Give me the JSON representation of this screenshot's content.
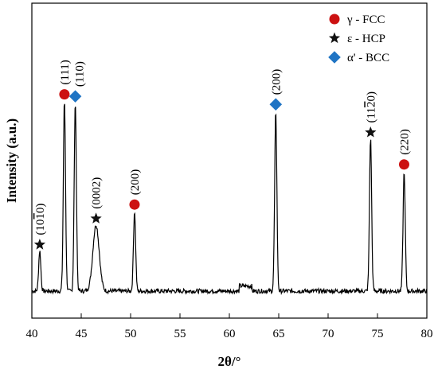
{
  "chart_data": {
    "type": "line",
    "title": "",
    "xlabel": "2θ/°",
    "ylabel": "Intensity (a.u.)",
    "xlim": [
      40,
      80
    ],
    "y_ticks_shown": false,
    "grid": false,
    "x_ticks": [
      40,
      45,
      50,
      55,
      60,
      65,
      70,
      75,
      80
    ],
    "x_tick_labels": [
      "40",
      "45",
      "50",
      "55",
      "60",
      "65",
      "70",
      "75",
      "80"
    ],
    "legend": {
      "placement": "top-right",
      "entries": [
        {
          "label": "γ - FCC",
          "marker": "circle",
          "color": "#cc1111"
        },
        {
          "label": "ε - HCP",
          "marker": "star",
          "color": "#111111"
        },
        {
          "label": "α' - BCC",
          "marker": "diamond",
          "color": "#1f74c4"
        }
      ]
    },
    "peaks": [
      {
        "two_theta": 40.8,
        "intensity": 0.2,
        "phase": "ε - HCP",
        "hkl": "(10",
        "hkl_bar": "1",
        "hkl_end": "0)"
      },
      {
        "two_theta": 43.3,
        "intensity": 0.95,
        "phase": "γ - FCC",
        "hkl": "(111)"
      },
      {
        "two_theta": 44.4,
        "intensity": 0.94,
        "phase": "α' - BCC",
        "hkl": "(110)"
      },
      {
        "two_theta": 46.5,
        "intensity": 0.33,
        "phase": "ε - HCP",
        "hkl": "(0002)"
      },
      {
        "two_theta": 50.4,
        "intensity": 0.4,
        "phase": "γ - FCC",
        "hkl": "(200)"
      },
      {
        "two_theta": 64.7,
        "intensity": 0.9,
        "phase": "α' - BCC",
        "hkl": "(200)"
      },
      {
        "two_theta": 74.3,
        "intensity": 0.76,
        "phase": "ε - HCP",
        "hkl": "(11",
        "hkl_bar": "2",
        "hkl_end": "0)"
      },
      {
        "two_theta": 77.7,
        "intensity": 0.6,
        "phase": "γ - FCC",
        "hkl": "(220)"
      }
    ]
  }
}
